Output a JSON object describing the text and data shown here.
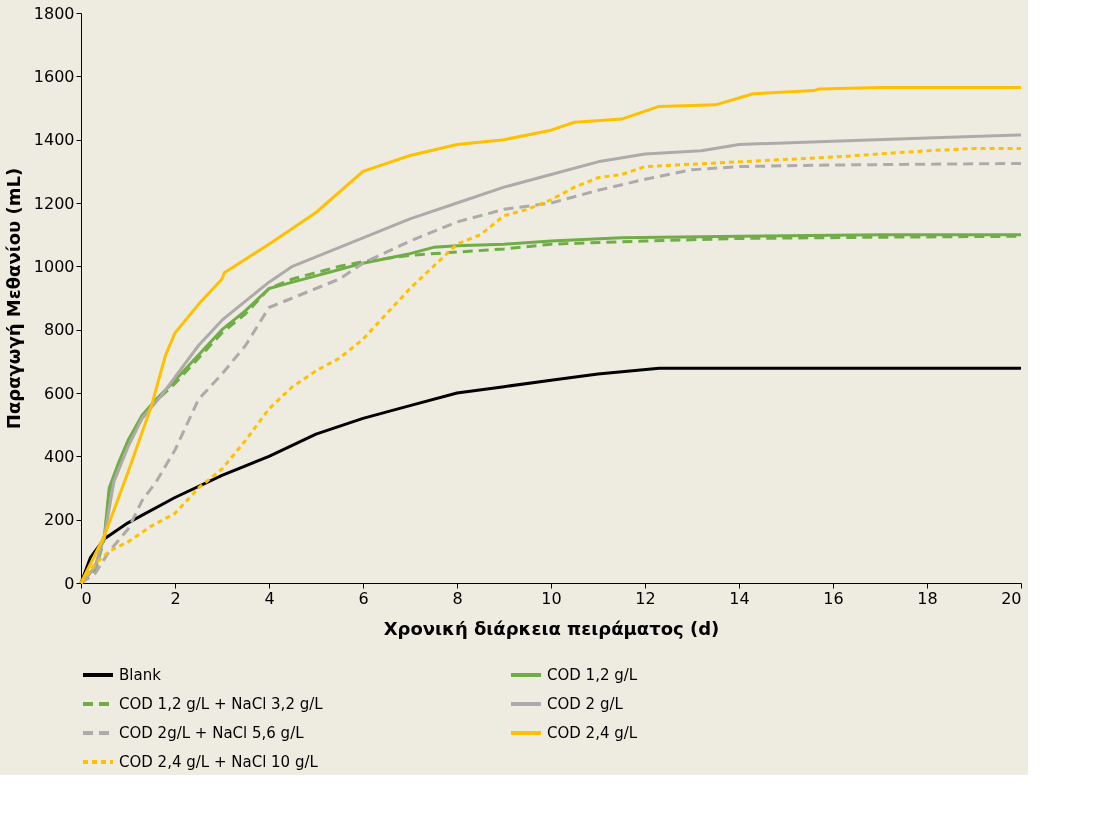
{
  "chart_data": {
    "type": "line",
    "xlabel": "Χρονική διάρκεια πειράματος (d)",
    "ylabel": "Παραγωγή Μεθανίου (mL)",
    "xlim": [
      0,
      20
    ],
    "xticks": [
      0,
      2,
      4,
      6,
      8,
      10,
      12,
      14,
      16,
      18,
      20
    ],
    "ylim": [
      0,
      1800
    ],
    "yticks": [
      0,
      200,
      400,
      600,
      800,
      1000,
      1200,
      1400,
      1600,
      1800
    ],
    "grid": false,
    "legend": "bottom",
    "marker": "none",
    "series": [
      {
        "name": "Blank",
        "color": "#000000",
        "line_style": "solid",
        "x": [
          0,
          0.2,
          0.5,
          1,
          2,
          3,
          4,
          5,
          6,
          7,
          8,
          9,
          10,
          11,
          12.3,
          20
        ],
        "values": [
          0,
          80,
          140,
          190,
          270,
          340,
          400,
          470,
          520,
          560,
          600,
          620,
          640,
          660,
          678,
          678
        ]
      },
      {
        "name": "COD 1,2 g/L",
        "color": "#70ad47",
        "line_style": "solid",
        "x": [
          0,
          0.3,
          0.5,
          0.6,
          0.8,
          1,
          1.3,
          1.6,
          2,
          2.5,
          3,
          3.5,
          4,
          4.5,
          5,
          5.5,
          6,
          7,
          7.5,
          8,
          9,
          10,
          11.5,
          14,
          17,
          20
        ],
        "values": [
          0,
          50,
          150,
          300,
          380,
          450,
          530,
          580,
          640,
          720,
          800,
          860,
          930,
          950,
          970,
          990,
          1010,
          1040,
          1060,
          1065,
          1070,
          1080,
          1090,
          1095,
          1100,
          1100
        ]
      },
      {
        "name": "COD 1,2 g/L + NaCl 3,2 g/L",
        "color": "#70ad47",
        "line_style": "dashed",
        "x": [
          0,
          0.3,
          0.5,
          0.6,
          0.8,
          1,
          1.3,
          1.6,
          2,
          2.5,
          3,
          3.5,
          4,
          4.5,
          5,
          5.5,
          6,
          7,
          8,
          9,
          10,
          12,
          14,
          17,
          20
        ],
        "values": [
          0,
          40,
          140,
          290,
          370,
          440,
          520,
          575,
          630,
          710,
          790,
          850,
          930,
          960,
          980,
          1000,
          1015,
          1035,
          1045,
          1055,
          1070,
          1080,
          1088,
          1092,
          1095
        ]
      },
      {
        "name": "COD 2 g/L",
        "color": "#aeaaaa",
        "line_style": "solid",
        "x": [
          0,
          0.3,
          0.5,
          0.7,
          1,
          1.3,
          1.7,
          2,
          2.5,
          3,
          3.5,
          4,
          4.5,
          5,
          5.5,
          6,
          7,
          8,
          9,
          10,
          11,
          12,
          13.2,
          14,
          16,
          18,
          20
        ],
        "values": [
          0,
          50,
          150,
          320,
          430,
          520,
          590,
          650,
          750,
          830,
          890,
          950,
          1000,
          1030,
          1060,
          1090,
          1150,
          1200,
          1250,
          1290,
          1330,
          1355,
          1365,
          1385,
          1395,
          1405,
          1415
        ]
      },
      {
        "name": "COD 2g/L + NaCl 5,6 g/L",
        "color": "#aeaaaa",
        "line_style": "dashed",
        "x": [
          0,
          0.3,
          0.6,
          1,
          1.3,
          1.6,
          2,
          2.5,
          3,
          3.5,
          4,
          4.5,
          5,
          5.5,
          6,
          7,
          8,
          9,
          10,
          11,
          12,
          13,
          14,
          16,
          20
        ],
        "values": [
          0,
          30,
          100,
          170,
          260,
          320,
          420,
          580,
          660,
          750,
          870,
          900,
          930,
          960,
          1010,
          1080,
          1140,
          1180,
          1200,
          1240,
          1275,
          1305,
          1315,
          1320,
          1325
        ]
      },
      {
        "name": "COD 2,4 g/L",
        "color": "#ffc000",
        "line_style": "solid",
        "x": [
          0,
          0.5,
          1,
          1.5,
          1.8,
          2,
          2.5,
          3,
          3.05,
          4,
          5,
          6,
          6.5,
          7,
          8,
          9,
          10,
          10.5,
          11.5,
          12.3,
          13.5,
          14.3,
          15.6,
          15.7,
          17,
          20
        ],
        "values": [
          0,
          150,
          350,
          560,
          720,
          790,
          880,
          960,
          980,
          1070,
          1170,
          1300,
          1325,
          1350,
          1385,
          1400,
          1430,
          1455,
          1465,
          1505,
          1510,
          1545,
          1555,
          1560,
          1565,
          1565
        ]
      },
      {
        "name": "COD 2,4 g/L + NaCl 10 g/L",
        "color": "#ffc000",
        "line_style": "dotted",
        "x": [
          0,
          0.3,
          0.6,
          1,
          1.5,
          2,
          2.5,
          3,
          3.5,
          4,
          4.5,
          5,
          5.5,
          6,
          6.5,
          7,
          7.5,
          8,
          8.5,
          9,
          9.5,
          10,
          10.5,
          11,
          11.5,
          12,
          14,
          16,
          18,
          19,
          20
        ],
        "values": [
          0,
          60,
          100,
          130,
          180,
          220,
          300,
          360,
          450,
          550,
          620,
          670,
          710,
          770,
          850,
          930,
          1000,
          1070,
          1100,
          1160,
          1180,
          1210,
          1250,
          1280,
          1290,
          1315,
          1330,
          1345,
          1365,
          1372,
          1372
        ]
      }
    ]
  }
}
